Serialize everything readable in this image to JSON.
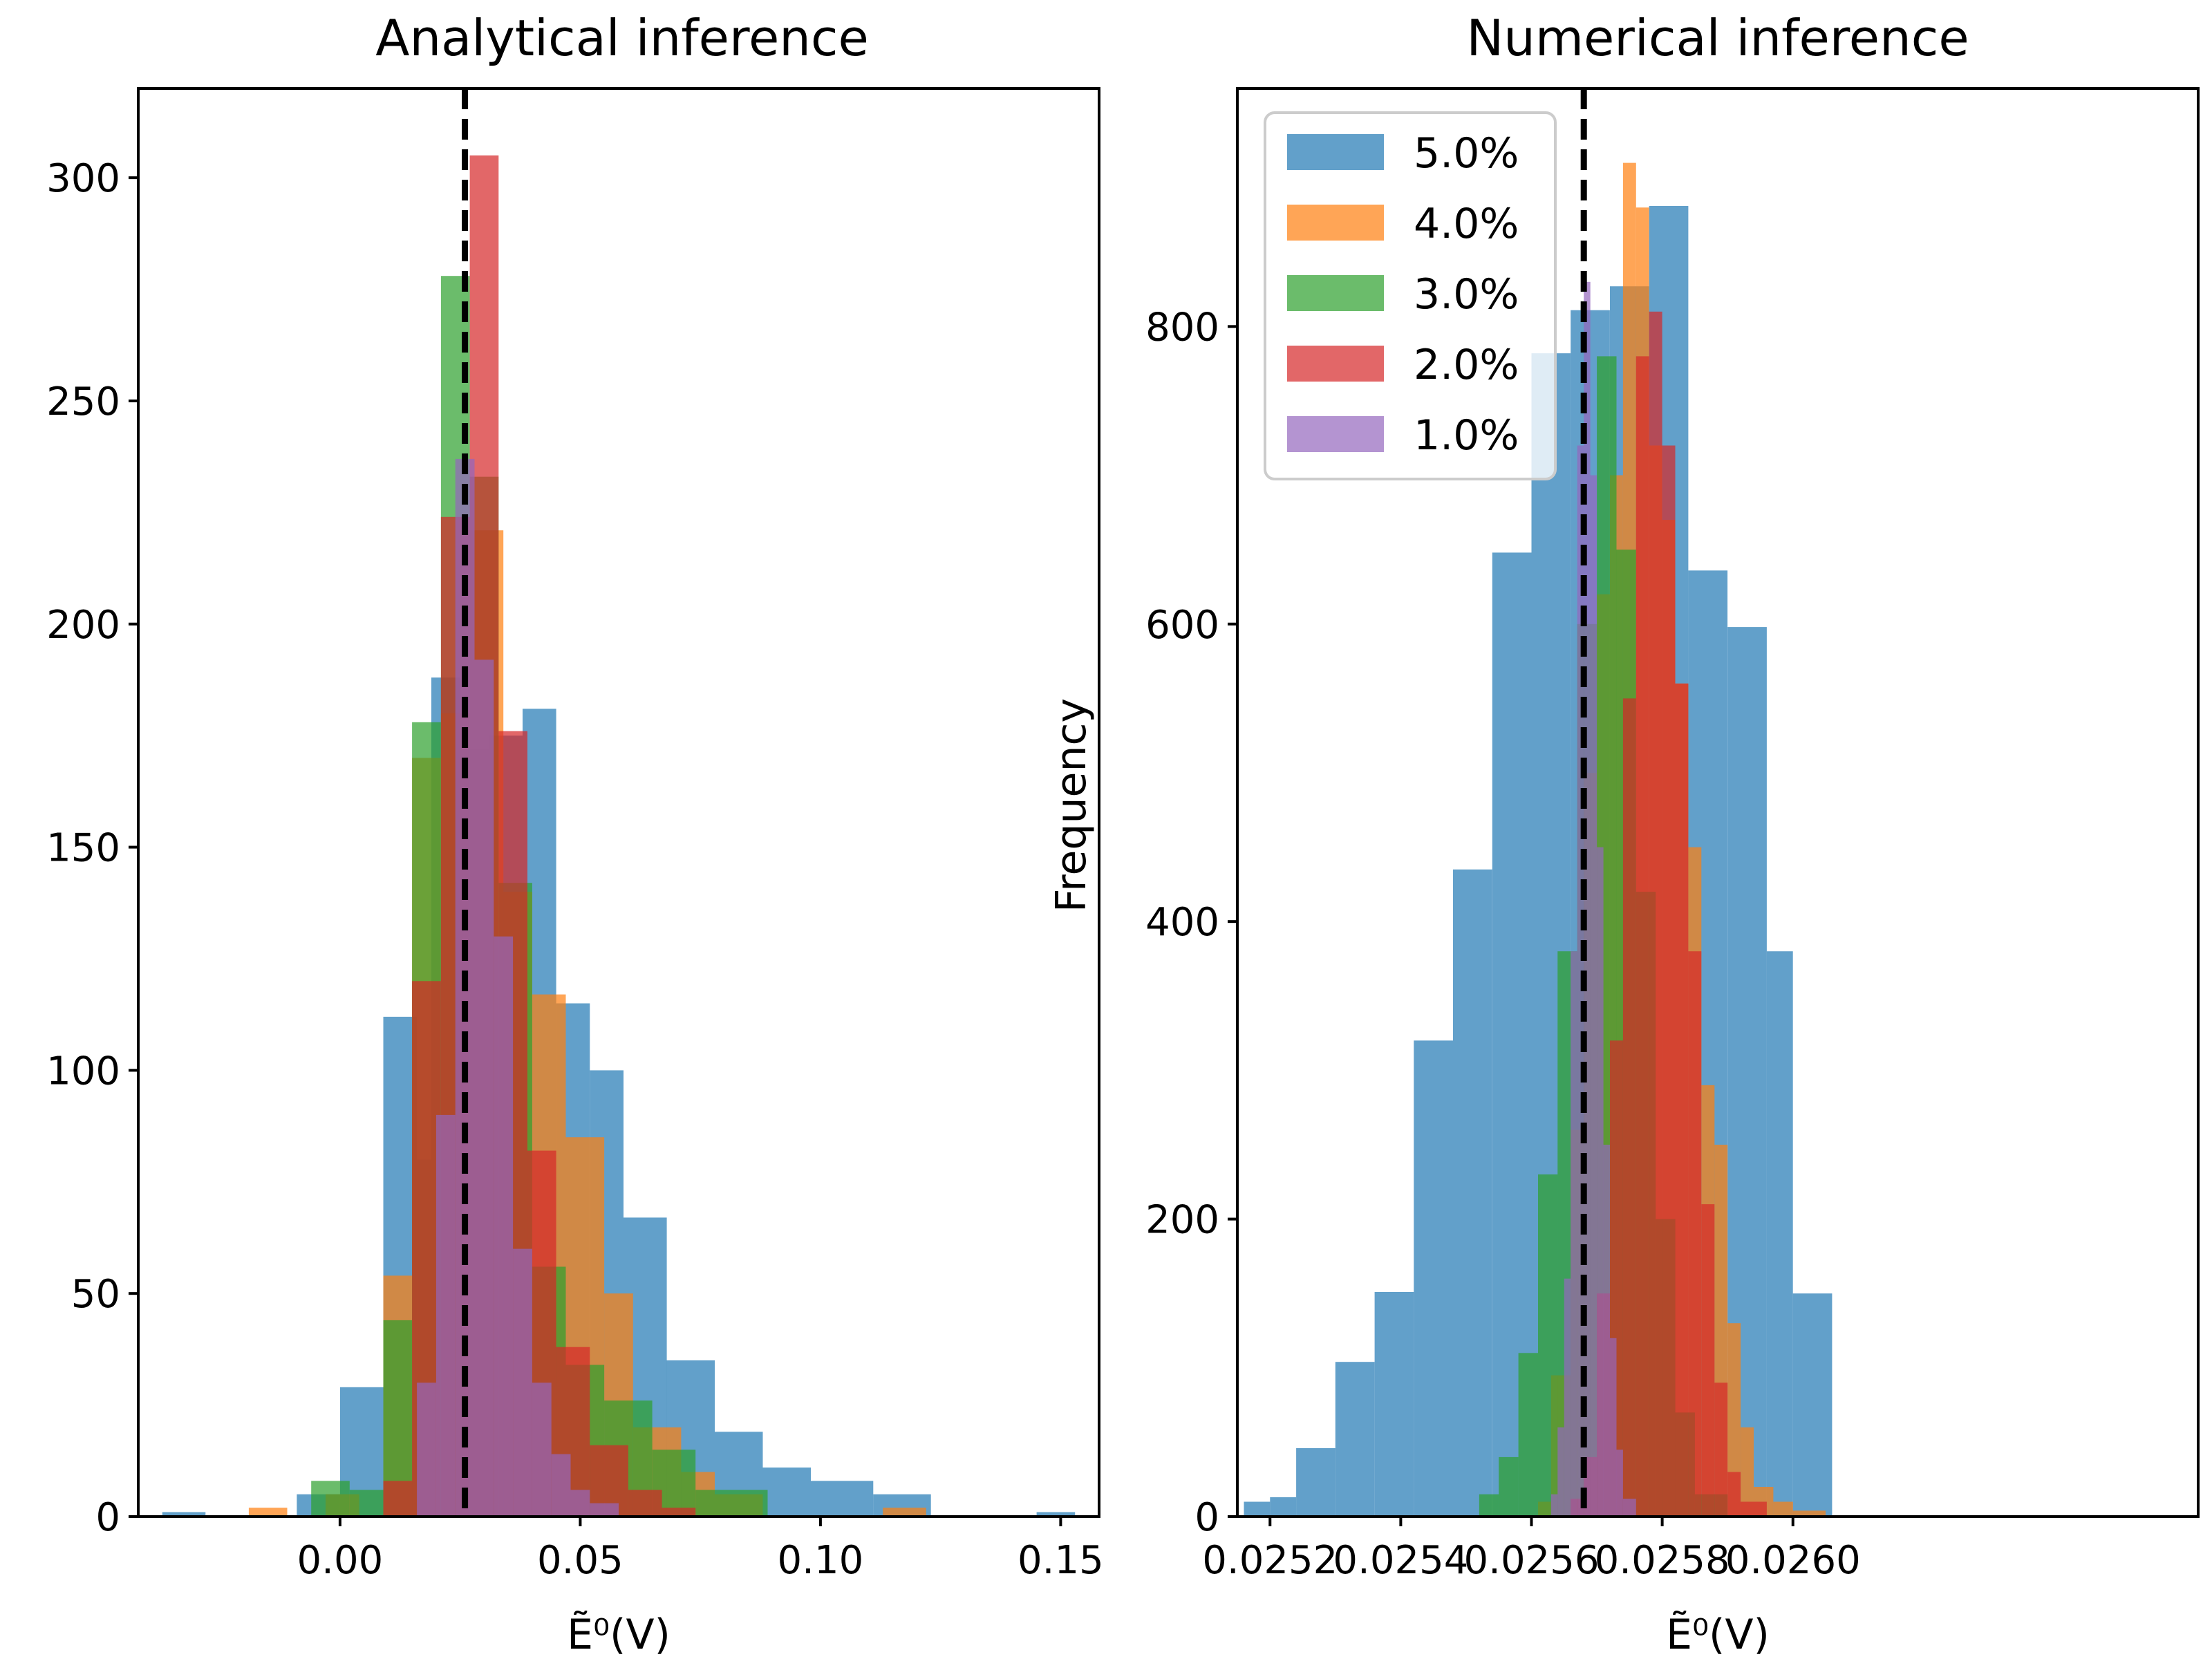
{
  "chart_data": [
    {
      "type": "histogram",
      "title": "Analytical inference",
      "xlabel": "Ẽ⁰(V)",
      "ylabel": "",
      "xlim": [
        -0.042,
        0.158
      ],
      "ylim": [
        0,
        320
      ],
      "xticks": [
        0.0,
        0.05,
        0.1,
        0.15
      ],
      "xtick_labels": [
        "0.00",
        "0.05",
        "0.10",
        "0.15"
      ],
      "yticks": [
        0,
        50,
        100,
        150,
        200,
        250,
        300
      ],
      "ytick_labels": [
        "0",
        "50",
        "100",
        "150",
        "200",
        "250",
        "300"
      ],
      "reference_line": 0.026,
      "series": [
        {
          "name": "5.0%",
          "color": "#1f77b4",
          "bins": [
            [
              -0.037,
              -0.028,
              1
            ],
            [
              -0.009,
              0.0,
              5
            ],
            [
              0.0,
              0.009,
              29
            ],
            [
              0.009,
              0.016,
              112
            ],
            [
              0.016,
              0.019,
              80
            ],
            [
              0.019,
              0.025,
              188
            ],
            [
              0.025,
              0.031,
              172
            ],
            [
              0.031,
              0.038,
              175
            ],
            [
              0.038,
              0.045,
              181
            ],
            [
              0.045,
              0.052,
              115
            ],
            [
              0.052,
              0.059,
              100
            ],
            [
              0.059,
              0.068,
              67
            ],
            [
              0.068,
              0.078,
              35
            ],
            [
              0.078,
              0.088,
              19
            ],
            [
              0.088,
              0.098,
              11
            ],
            [
              0.098,
              0.111,
              8
            ],
            [
              0.111,
              0.123,
              5
            ],
            [
              0.145,
              0.153,
              1
            ]
          ]
        },
        {
          "name": "4.0%",
          "color": "#ff7f0e",
          "bins": [
            [
              -0.019,
              -0.011,
              2
            ],
            [
              -0.003,
              0.004,
              5
            ],
            [
              0.009,
              0.015,
              54
            ],
            [
              0.015,
              0.021,
              170
            ],
            [
              0.021,
              0.027,
              180
            ],
            [
              0.027,
              0.034,
              221
            ],
            [
              0.034,
              0.04,
              140
            ],
            [
              0.04,
              0.047,
              117
            ],
            [
              0.047,
              0.055,
              85
            ],
            [
              0.055,
              0.061,
              50
            ],
            [
              0.061,
              0.071,
              20
            ],
            [
              0.071,
              0.078,
              10
            ],
            [
              0.078,
              0.088,
              5
            ],
            [
              0.113,
              0.122,
              2
            ]
          ]
        },
        {
          "name": "3.0%",
          "color": "#2ca02c",
          "bins": [
            [
              -0.006,
              0.002,
              8
            ],
            [
              0.002,
              0.009,
              6
            ],
            [
              0.009,
              0.015,
              44
            ],
            [
              0.015,
              0.021,
              178
            ],
            [
              0.021,
              0.027,
              278
            ],
            [
              0.027,
              0.033,
              233
            ],
            [
              0.033,
              0.04,
              142
            ],
            [
              0.04,
              0.047,
              56
            ],
            [
              0.047,
              0.055,
              34
            ],
            [
              0.055,
              0.065,
              26
            ],
            [
              0.065,
              0.074,
              15
            ],
            [
              0.074,
              0.089,
              6
            ]
          ]
        },
        {
          "name": "2.0%",
          "color": "#d62728",
          "bins": [
            [
              0.009,
              0.015,
              8
            ],
            [
              0.015,
              0.021,
              120
            ],
            [
              0.021,
              0.027,
              224
            ],
            [
              0.027,
              0.033,
              305
            ],
            [
              0.033,
              0.039,
              176
            ],
            [
              0.039,
              0.045,
              82
            ],
            [
              0.045,
              0.052,
              38
            ],
            [
              0.052,
              0.06,
              16
            ],
            [
              0.06,
              0.067,
              6
            ],
            [
              0.067,
              0.074,
              2
            ]
          ]
        },
        {
          "name": "1.0%",
          "color": "#9467bd",
          "bins": [
            [
              0.016,
              0.02,
              30
            ],
            [
              0.02,
              0.024,
              90
            ],
            [
              0.024,
              0.028,
              237
            ],
            [
              0.028,
              0.032,
              192
            ],
            [
              0.032,
              0.036,
              130
            ],
            [
              0.036,
              0.04,
              60
            ],
            [
              0.04,
              0.044,
              30
            ],
            [
              0.044,
              0.048,
              14
            ],
            [
              0.048,
              0.052,
              6
            ],
            [
              0.052,
              0.058,
              3
            ]
          ]
        }
      ]
    },
    {
      "type": "histogram",
      "title": "Numerical inference",
      "xlabel": "Ẽ⁰(V)",
      "ylabel": "Frequency",
      "xlim": [
        0.02515,
        0.02662
      ],
      "ylim": [
        0,
        960
      ],
      "xticks": [
        0.0252,
        0.0254,
        0.0256,
        0.0258,
        0.026
      ],
      "xtick_labels": [
        "0.0252",
        "0.0254",
        "0.0256",
        "0.0258",
        "0.0260"
      ],
      "yticks": [
        0,
        200,
        400,
        600,
        800
      ],
      "ytick_labels": [
        "0",
        "200",
        "400",
        "600",
        "800"
      ],
      "reference_line": 0.02568,
      "legend": {
        "position": "upper-left",
        "entries": [
          "5.0%",
          "4.0%",
          "3.0%",
          "2.0%",
          "1.0%"
        ]
      },
      "series": [
        {
          "name": "5.0%",
          "color": "#1f77b4",
          "bins": [
            [
              0.02516,
              0.0252,
              10
            ],
            [
              0.0252,
              0.02524,
              13
            ],
            [
              0.02524,
              0.0253,
              46
            ],
            [
              0.0253,
              0.02536,
              104
            ],
            [
              0.02536,
              0.02542,
              151
            ],
            [
              0.02542,
              0.02548,
              320
            ],
            [
              0.02548,
              0.02554,
              435
            ],
            [
              0.02554,
              0.0256,
              648
            ],
            [
              0.0256,
              0.02566,
              782
            ],
            [
              0.02566,
              0.02572,
              811
            ],
            [
              0.02572,
              0.02578,
              827
            ],
            [
              0.02578,
              0.02584,
              881
            ],
            [
              0.02584,
              0.0259,
              636
            ],
            [
              0.0259,
              0.02596,
              598
            ],
            [
              0.02596,
              0.026,
              380
            ],
            [
              0.026,
              0.02606,
              150
            ]
          ]
        },
        {
          "name": "4.0%",
          "color": "#ff7f0e",
          "bins": [
            [
              0.02561,
              0.02563,
              10
            ],
            [
              0.02563,
              0.02566,
              95
            ],
            [
              0.02566,
              0.02568,
              260
            ],
            [
              0.02568,
              0.0257,
              500
            ],
            [
              0.0257,
              0.02572,
              620
            ],
            [
              0.02572,
              0.02574,
              700
            ],
            [
              0.02574,
              0.02576,
              910
            ],
            [
              0.02576,
              0.02578,
              880
            ],
            [
              0.02578,
              0.0258,
              720
            ],
            [
              0.0258,
              0.02582,
              670
            ],
            [
              0.02582,
              0.02584,
              560
            ],
            [
              0.02584,
              0.02586,
              450
            ],
            [
              0.02586,
              0.02588,
              290
            ],
            [
              0.02588,
              0.0259,
              250
            ],
            [
              0.0259,
              0.02592,
              130
            ],
            [
              0.02592,
              0.02594,
              60
            ],
            [
              0.02594,
              0.02597,
              20
            ],
            [
              0.02597,
              0.026,
              10
            ],
            [
              0.026,
              0.02605,
              4
            ]
          ]
        },
        {
          "name": "3.0%",
          "color": "#2ca02c",
          "bins": [
            [
              0.02552,
              0.02555,
              15
            ],
            [
              0.02555,
              0.02558,
              40
            ],
            [
              0.02558,
              0.02561,
              110
            ],
            [
              0.02561,
              0.02564,
              230
            ],
            [
              0.02564,
              0.02567,
              380
            ],
            [
              0.02567,
              0.0257,
              600
            ],
            [
              0.0257,
              0.02573,
              780
            ],
            [
              0.02573,
              0.02576,
              650
            ],
            [
              0.02576,
              0.02579,
              420
            ],
            [
              0.02579,
              0.02582,
              200
            ],
            [
              0.02582,
              0.02585,
              70
            ],
            [
              0.02585,
              0.0259,
              15
            ]
          ]
        },
        {
          "name": "2.0%",
          "color": "#d62728",
          "bins": [
            [
              0.02566,
              0.02568,
              12
            ],
            [
              0.02568,
              0.0257,
              40
            ],
            [
              0.0257,
              0.02572,
              150
            ],
            [
              0.02572,
              0.02574,
              320
            ],
            [
              0.02574,
              0.02576,
              550
            ],
            [
              0.02576,
              0.02578,
              780
            ],
            [
              0.02578,
              0.0258,
              810
            ],
            [
              0.0258,
              0.02582,
              720
            ],
            [
              0.02582,
              0.02584,
              560
            ],
            [
              0.02584,
              0.02586,
              380
            ],
            [
              0.02586,
              0.02588,
              210
            ],
            [
              0.02588,
              0.0259,
              90
            ],
            [
              0.0259,
              0.02592,
              30
            ],
            [
              0.02592,
              0.02596,
              10
            ]
          ]
        },
        {
          "name": "1.0%",
          "color": "#9467bd",
          "bins": [
            [
              0.02563,
              0.02564,
              15
            ],
            [
              0.02564,
              0.02565,
              60
            ],
            [
              0.02565,
              0.02566,
              160
            ],
            [
              0.02566,
              0.02567,
              380
            ],
            [
              0.02567,
              0.02568,
              720
            ],
            [
              0.02568,
              0.02569,
              830
            ],
            [
              0.02569,
              0.0257,
              700
            ],
            [
              0.0257,
              0.02571,
              450
            ],
            [
              0.02571,
              0.02572,
              250
            ],
            [
              0.02572,
              0.02573,
              120
            ],
            [
              0.02573,
              0.02574,
              45
            ],
            [
              0.02574,
              0.02576,
              12
            ]
          ]
        }
      ]
    }
  ]
}
